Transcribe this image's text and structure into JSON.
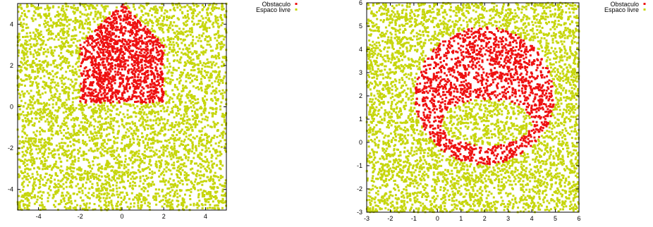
{
  "chart_data": [
    {
      "type": "scatter",
      "title": "",
      "xlabel": "",
      "ylabel": "",
      "xlim": [
        -5,
        5
      ],
      "ylim": [
        -5,
        5
      ],
      "grid": false,
      "legend_placement": "outside-top-right",
      "xticks": [
        -4,
        -2,
        0,
        2,
        4
      ],
      "yticks": [
        -4,
        -2,
        0,
        2,
        4
      ],
      "colors": {
        "obstacle": "#ee1111",
        "free": "#c6d60c"
      },
      "obstacle_shape": {
        "kind": "polygon",
        "vertices": [
          [
            -2,
            0.2
          ],
          [
            -2,
            3
          ],
          [
            0,
            5
          ],
          [
            2,
            3
          ],
          [
            2,
            0.2
          ]
        ]
      },
      "series": [
        {
          "name": "Obstaculo",
          "point_count": 1400
        },
        {
          "name": "Espaco livre",
          "point_count": 4200
        }
      ]
    },
    {
      "type": "scatter",
      "title": "",
      "xlabel": "",
      "ylabel": "",
      "xlim": [
        -3,
        6
      ],
      "ylim": [
        -3,
        6
      ],
      "grid": false,
      "legend_placement": "outside-top-right",
      "xticks": [
        -3,
        -2,
        -1,
        0,
        1,
        2,
        3,
        4,
        5,
        6
      ],
      "yticks": [
        -3,
        -2,
        -1,
        0,
        1,
        2,
        3,
        4,
        5,
        6
      ],
      "colors": {
        "obstacle": "#ee1111",
        "free": "#c6d60c"
      },
      "obstacle_shape": {
        "kind": "ring",
        "outer": {
          "cx": 2,
          "cy": 2,
          "r": 2.95
        },
        "inner_ellipse": {
          "cx": 2.1,
          "cy": 0.85,
          "rx": 1.9,
          "ry": 1.0
        }
      },
      "series": [
        {
          "name": "Obstaculo",
          "point_count": 1600
        },
        {
          "name": "Espaco livre",
          "point_count": 4200
        }
      ]
    }
  ]
}
